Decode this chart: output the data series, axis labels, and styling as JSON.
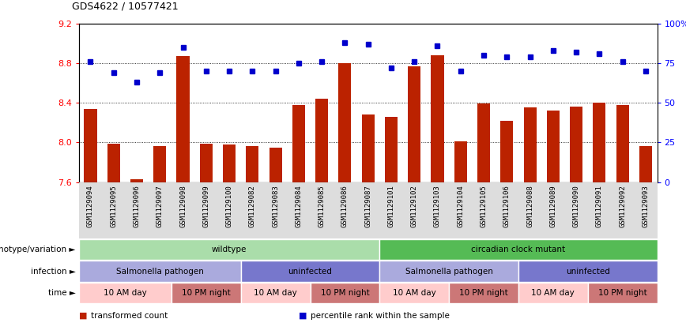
{
  "title": "GDS4622 / 10577421",
  "samples": [
    "GSM1129094",
    "GSM1129095",
    "GSM1129096",
    "GSM1129097",
    "GSM1129098",
    "GSM1129099",
    "GSM1129100",
    "GSM1129082",
    "GSM1129083",
    "GSM1129084",
    "GSM1129085",
    "GSM1129086",
    "GSM1129087",
    "GSM1129101",
    "GSM1129102",
    "GSM1129103",
    "GSM1129104",
    "GSM1129105",
    "GSM1129106",
    "GSM1129088",
    "GSM1129089",
    "GSM1129090",
    "GSM1129091",
    "GSM1129092",
    "GSM1129093"
  ],
  "red_values": [
    8.34,
    7.99,
    7.63,
    7.96,
    8.87,
    7.99,
    7.98,
    7.96,
    7.95,
    8.38,
    8.44,
    8.8,
    8.28,
    8.26,
    8.77,
    8.88,
    8.01,
    8.39,
    8.22,
    8.35,
    8.32,
    8.36,
    8.4,
    8.38,
    7.96
  ],
  "blue_values": [
    76,
    69,
    63,
    69,
    85,
    70,
    70,
    70,
    70,
    75,
    76,
    88,
    87,
    72,
    76,
    86,
    70,
    80,
    79,
    79,
    83,
    82,
    81,
    76,
    70
  ],
  "ylim_left": [
    7.6,
    9.2
  ],
  "ylim_right": [
    0,
    100
  ],
  "yticks_left": [
    7.6,
    8.0,
    8.4,
    8.8,
    9.2
  ],
  "yticks_right": [
    0,
    25,
    50,
    75,
    100
  ],
  "bar_color": "#bb2200",
  "dot_color": "#0000cc",
  "annotation_rows": [
    {
      "label": "genotype/variation",
      "segments": [
        {
          "text": "wildtype",
          "start": 0,
          "end": 13,
          "color": "#aaddaa"
        },
        {
          "text": "circadian clock mutant",
          "start": 13,
          "end": 25,
          "color": "#55bb55"
        }
      ]
    },
    {
      "label": "infection",
      "segments": [
        {
          "text": "Salmonella pathogen",
          "start": 0,
          "end": 7,
          "color": "#aaaadd"
        },
        {
          "text": "uninfected",
          "start": 7,
          "end": 13,
          "color": "#7777cc"
        },
        {
          "text": "Salmonella pathogen",
          "start": 13,
          "end": 19,
          "color": "#aaaadd"
        },
        {
          "text": "uninfected",
          "start": 19,
          "end": 25,
          "color": "#7777cc"
        }
      ]
    },
    {
      "label": "time",
      "segments": [
        {
          "text": "10 AM day",
          "start": 0,
          "end": 4,
          "color": "#ffcccc"
        },
        {
          "text": "10 PM night",
          "start": 4,
          "end": 7,
          "color": "#cc7777"
        },
        {
          "text": "10 AM day",
          "start": 7,
          "end": 10,
          "color": "#ffcccc"
        },
        {
          "text": "10 PM night",
          "start": 10,
          "end": 13,
          "color": "#cc7777"
        },
        {
          "text": "10 AM day",
          "start": 13,
          "end": 16,
          "color": "#ffcccc"
        },
        {
          "text": "10 PM night",
          "start": 16,
          "end": 19,
          "color": "#cc7777"
        },
        {
          "text": "10 AM day",
          "start": 19,
          "end": 22,
          "color": "#ffcccc"
        },
        {
          "text": "10 PM night",
          "start": 22,
          "end": 25,
          "color": "#cc7777"
        }
      ]
    }
  ],
  "legend": [
    {
      "label": "transformed count",
      "color": "#bb2200"
    },
    {
      "label": "percentile rank within the sample",
      "color": "#0000cc"
    }
  ]
}
